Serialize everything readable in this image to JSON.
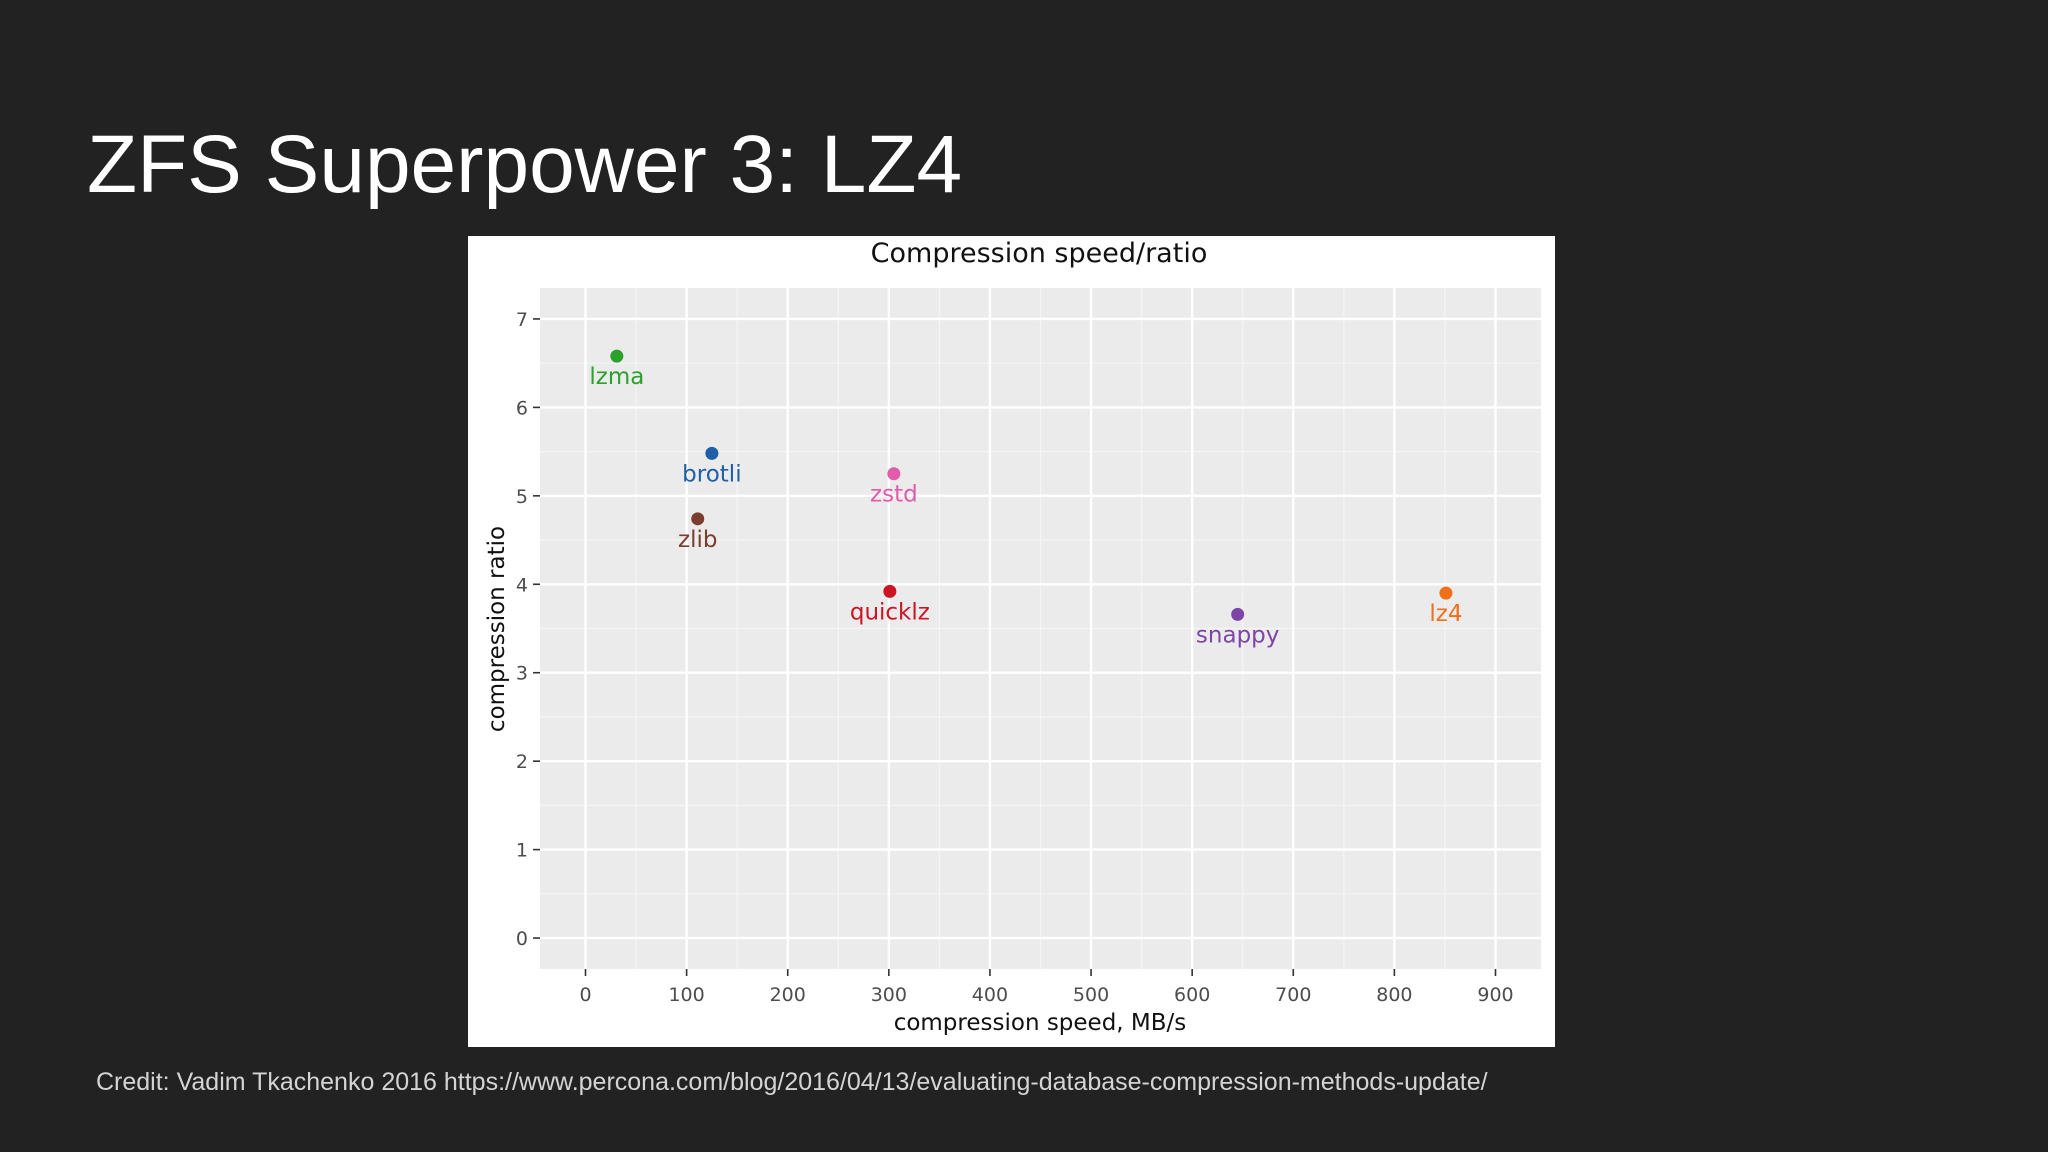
{
  "slide": {
    "title": "ZFS Superpower 3: LZ4",
    "credit": "Credit: Vadim Tkachenko 2016 https://www.percona.com/blog/2016/04/13/evaluating-database-compression-methods-update/"
  },
  "chart_data": {
    "type": "scatter",
    "title": "Compression speed/ratio",
    "xlabel": "compression speed, MB/s",
    "ylabel": "compression ratio",
    "xlim": [
      -45,
      945
    ],
    "ylim": [
      -0.35,
      7.35
    ],
    "xticks": [
      0,
      100,
      200,
      300,
      400,
      500,
      600,
      700,
      800,
      900
    ],
    "yticks": [
      0,
      1,
      2,
      3,
      4,
      5,
      6,
      7
    ],
    "grid": true,
    "panel_color": "#ebebeb",
    "series": [
      {
        "name": "lzma",
        "x": 31,
        "y": 6.58,
        "color": "#2ca02c"
      },
      {
        "name": "brotli",
        "x": 125,
        "y": 5.48,
        "color": "#1f5fa8"
      },
      {
        "name": "zlib",
        "x": 111,
        "y": 4.74,
        "color": "#7a3e2e"
      },
      {
        "name": "zstd",
        "x": 305,
        "y": 5.25,
        "color": "#e35bab"
      },
      {
        "name": "quicklz",
        "x": 301,
        "y": 3.92,
        "color": "#cc1424"
      },
      {
        "name": "snappy",
        "x": 645,
        "y": 3.66,
        "color": "#7e45a8"
      },
      {
        "name": "lz4",
        "x": 851,
        "y": 3.9,
        "color": "#f0701a"
      }
    ]
  }
}
